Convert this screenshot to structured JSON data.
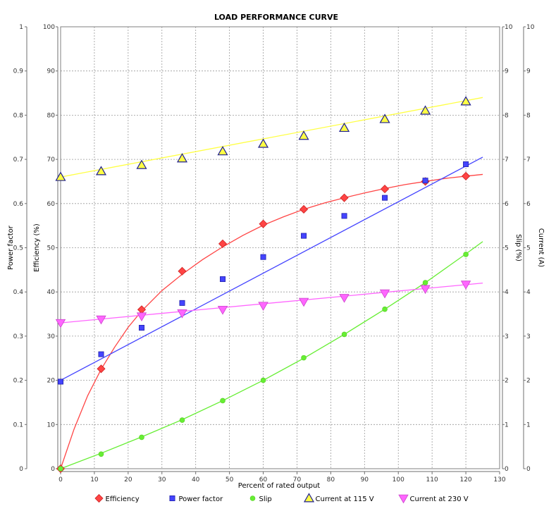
{
  "chart_data": {
    "type": "scatter",
    "title": "LOAD PERFORMANCE CURVE",
    "xlabel": "Percent of rated output",
    "xlim": [
      0,
      130
    ],
    "x_ticks": [
      "0",
      "10",
      "20",
      "30",
      "40",
      "50",
      "60",
      "70",
      "80",
      "90",
      "100",
      "110",
      "120",
      "130"
    ],
    "axes": [
      {
        "id": "pf",
        "label": "Power factor",
        "side": "left-outer",
        "range": [
          0,
          1
        ],
        "ticks": [
          "0",
          "0.1",
          "0.2",
          "0.3",
          "0.4",
          "0.5",
          "0.6",
          "0.7",
          "0.8",
          "0.9",
          "1"
        ]
      },
      {
        "id": "eff",
        "label": "Efficiency (%)",
        "side": "left-inner",
        "range": [
          0,
          100
        ],
        "ticks": [
          "0",
          "10",
          "20",
          "30",
          "40",
          "50",
          "60",
          "70",
          "80",
          "90",
          "100"
        ]
      },
      {
        "id": "slip",
        "label": "Slip (%)",
        "side": "right-inner",
        "range": [
          0,
          10
        ],
        "ticks": [
          "0",
          "1",
          "2",
          "3",
          "4",
          "5",
          "6",
          "7",
          "8",
          "9",
          "10"
        ]
      },
      {
        "id": "cur",
        "label": "Current (A)",
        "side": "right-outer",
        "range": [
          0,
          10
        ],
        "ticks": [
          "0",
          "1",
          "2",
          "3",
          "4",
          "5",
          "6",
          "7",
          "8",
          "9",
          "10"
        ]
      }
    ],
    "series": [
      {
        "name": "Efficiency",
        "axis": "eff",
        "color": "#ff4444",
        "marker": "diamond",
        "x": [
          0,
          12,
          24,
          36,
          48,
          60,
          72,
          84,
          96,
          108,
          120
        ],
        "y": [
          0,
          22.6,
          36,
          44.7,
          50.9,
          55.4,
          58.7,
          61.3,
          63.3,
          65,
          66.2
        ],
        "fit_x": [
          0,
          4,
          8,
          12,
          16,
          20,
          24,
          30,
          36,
          42,
          48,
          54,
          60,
          66,
          72,
          78,
          84,
          90,
          96,
          102,
          108,
          114,
          120,
          125
        ],
        "fit_y": [
          0,
          9,
          16.5,
          22.5,
          27.5,
          32,
          35.7,
          40.3,
          44,
          47.3,
          50.2,
          52.8,
          55.1,
          57,
          58.7,
          60.1,
          61.3,
          62.4,
          63.4,
          64.3,
          65,
          65.7,
          66.2,
          66.6
        ]
      },
      {
        "name": "Power factor",
        "axis": "pf",
        "color": "#4444ff",
        "marker": "square",
        "x": [
          0,
          12,
          24,
          36,
          48,
          60,
          72,
          84,
          96,
          108,
          120
        ],
        "y": [
          0.197,
          0.259,
          0.319,
          0.375,
          0.429,
          0.479,
          0.527,
          0.572,
          0.613,
          0.652,
          0.689
        ],
        "fit_x": [
          0,
          125
        ],
        "fit_y": [
          0.2,
          0.705
        ]
      },
      {
        "name": "Slip",
        "axis": "slip",
        "color": "#66ee33",
        "marker": "circle",
        "x": [
          0,
          12,
          24,
          36,
          48,
          60,
          72,
          84,
          96,
          108,
          120
        ],
        "y": [
          0,
          0.33,
          0.71,
          1.1,
          1.54,
          2,
          2.51,
          3.04,
          3.61,
          4.21,
          4.85
        ],
        "fit_x": [
          0,
          12,
          24,
          36,
          48,
          60,
          72,
          84,
          96,
          108,
          120,
          125
        ],
        "fit_y": [
          0,
          0.35,
          0.72,
          1.11,
          1.54,
          2,
          2.5,
          3.04,
          3.61,
          4.21,
          4.86,
          5.14
        ]
      },
      {
        "name": "Current at 115 V",
        "axis": "cur",
        "color": "#ffff44",
        "marker": "triangle-up",
        "x": [
          0,
          12,
          24,
          36,
          48,
          60,
          72,
          84,
          96,
          108,
          120
        ],
        "y": [
          6.6,
          6.73,
          6.87,
          7.02,
          7.18,
          7.35,
          7.53,
          7.71,
          7.91,
          8.1,
          8.31
        ],
        "fit_x": [
          0,
          125
        ],
        "fit_y": [
          6.6,
          8.4
        ]
      },
      {
        "name": "Current at 230 V",
        "axis": "cur",
        "color": "#ff66ff",
        "marker": "triangle-down",
        "x": [
          0,
          12,
          24,
          36,
          48,
          60,
          72,
          84,
          96,
          108,
          120
        ],
        "y": [
          3.3,
          3.38,
          3.45,
          3.52,
          3.6,
          3.69,
          3.78,
          3.87,
          3.97,
          4.07,
          4.17
        ],
        "fit_x": [
          0,
          125
        ],
        "fit_y": [
          3.3,
          4.2
        ]
      }
    ],
    "grid": true,
    "legend_position": "bottom"
  }
}
